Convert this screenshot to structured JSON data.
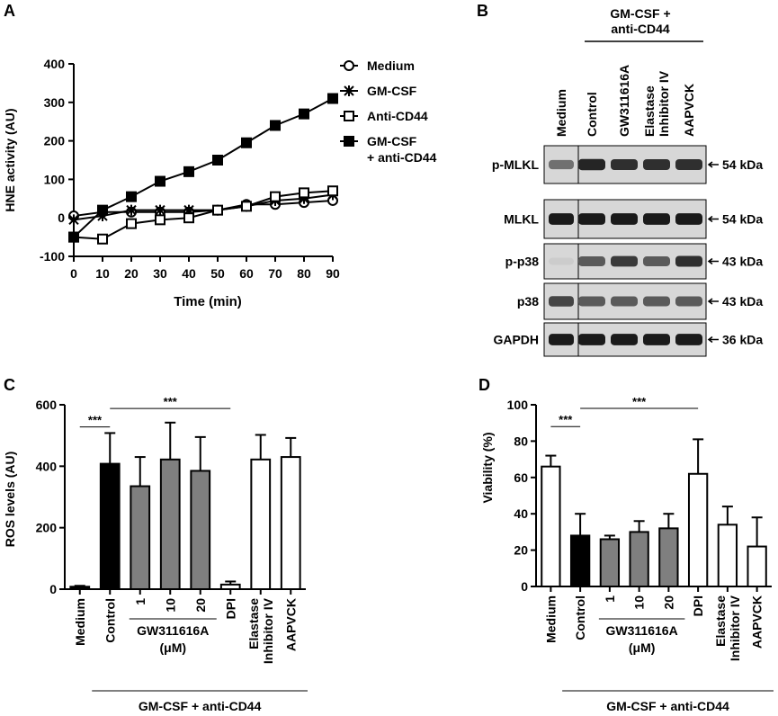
{
  "panel_letters": {
    "a": "A",
    "b": "B",
    "c": "C",
    "d": "D"
  },
  "chart_data": [
    {
      "panel": "A",
      "type": "line",
      "xlabel": "Time (min)",
      "ylabel": "HNE activity (AU)",
      "xlim": [
        0,
        90
      ],
      "ylim": [
        -100,
        400
      ],
      "x_ticks": [
        "0",
        "10",
        "20",
        "30",
        "40",
        "50",
        "60",
        "70",
        "80",
        "90"
      ],
      "y_ticks": [
        "-100",
        "0",
        "100",
        "200",
        "300",
        "400"
      ],
      "x": [
        0,
        10,
        20,
        30,
        40,
        50,
        60,
        70,
        80,
        90
      ],
      "series": [
        {
          "name": "Medium",
          "marker": "open-circle",
          "values": [
            5,
            15,
            15,
            15,
            15,
            20,
            35,
            35,
            40,
            45
          ]
        },
        {
          "name": "GM-CSF",
          "marker": "star",
          "values": [
            -5,
            5,
            20,
            20,
            20,
            20,
            30,
            45,
            50,
            60
          ]
        },
        {
          "name": "Anti-CD44",
          "marker": "open-square",
          "values": [
            -50,
            -55,
            -15,
            -5,
            0,
            20,
            30,
            55,
            65,
            70
          ]
        },
        {
          "name": "GM-CSF\n+ anti-CD44",
          "marker": "filled-square",
          "values": [
            -50,
            20,
            55,
            95,
            120,
            150,
            195,
            240,
            270,
            310
          ]
        }
      ]
    },
    {
      "panel": "C",
      "type": "bar",
      "ylabel": "ROS levels (AU)",
      "ylim": [
        0,
        600
      ],
      "y_ticks": [
        "0",
        "200",
        "400",
        "600"
      ],
      "categories": [
        "Medium",
        "Control",
        "1",
        "10",
        "20",
        "DPI",
        "Elastase Inhibitor IV",
        "AAPVCK"
      ],
      "values": [
        8,
        408,
        335,
        422,
        385,
        15,
        422,
        430
      ],
      "errors": [
        3,
        100,
        95,
        120,
        110,
        10,
        80,
        62
      ],
      "bar_colors": [
        "#000000",
        "#000000",
        "#7f7f7f",
        "#7f7f7f",
        "#7f7f7f",
        "#ffffff",
        "#ffffff",
        "#ffffff"
      ],
      "significance": [
        {
          "label": "***",
          "from": "Medium",
          "to": "Control"
        },
        {
          "label": "***",
          "from": "Control",
          "to": "DPI"
        }
      ],
      "group_label": "GW311616A",
      "group_unit": "(μM)",
      "treatment_label": "GM-CSF + anti-CD44"
    },
    {
      "panel": "D",
      "type": "bar",
      "ylabel": "Viability (%)",
      "ylim": [
        0,
        100
      ],
      "y_ticks": [
        "0",
        "20",
        "40",
        "60",
        "80",
        "100"
      ],
      "categories": [
        "Medium",
        "Control",
        "1",
        "10",
        "20",
        "DPI",
        "Elastase Inhibitor IV",
        "AAPVCK"
      ],
      "values": [
        66,
        28,
        26,
        30,
        32,
        62,
        34,
        22
      ],
      "errors": [
        6,
        12,
        2,
        6,
        8,
        19,
        10,
        16
      ],
      "bar_colors": [
        "#ffffff",
        "#000000",
        "#7f7f7f",
        "#7f7f7f",
        "#7f7f7f",
        "#ffffff",
        "#ffffff",
        "#ffffff"
      ],
      "significance": [
        {
          "label": "***",
          "from": "Medium",
          "to": "Control"
        },
        {
          "label": "***",
          "from": "Control",
          "to": "DPI"
        }
      ],
      "group_label": "GW311616A",
      "group_unit": "(μM)",
      "treatment_label": "GM-CSF + anti-CD44"
    }
  ],
  "blot": {
    "treatment_header": "GM-CSF +\nanti-CD44",
    "lanes": [
      "Medium",
      "Control",
      "GW311616A",
      "Elastase\nInhibitor IV",
      "AAPVCK"
    ],
    "rows": [
      {
        "protein": "p-MLKL",
        "size": "54 kDa",
        "intensity": [
          0.55,
          0.9,
          0.85,
          0.85,
          0.85
        ]
      },
      {
        "protein": "MLKL",
        "size": "54 kDa",
        "intensity": [
          0.95,
          0.95,
          0.95,
          0.95,
          0.95
        ]
      },
      {
        "protein": "p-p38",
        "size": "43 kDa",
        "intensity": [
          0.12,
          0.65,
          0.8,
          0.65,
          0.85
        ]
      },
      {
        "protein": "p38",
        "size": "43 kDa",
        "intensity": [
          0.75,
          0.65,
          0.65,
          0.65,
          0.65
        ]
      },
      {
        "protein": "GAPDH",
        "size": "36 kDa",
        "intensity": [
          0.95,
          0.95,
          0.95,
          0.95,
          0.95
        ]
      }
    ]
  }
}
